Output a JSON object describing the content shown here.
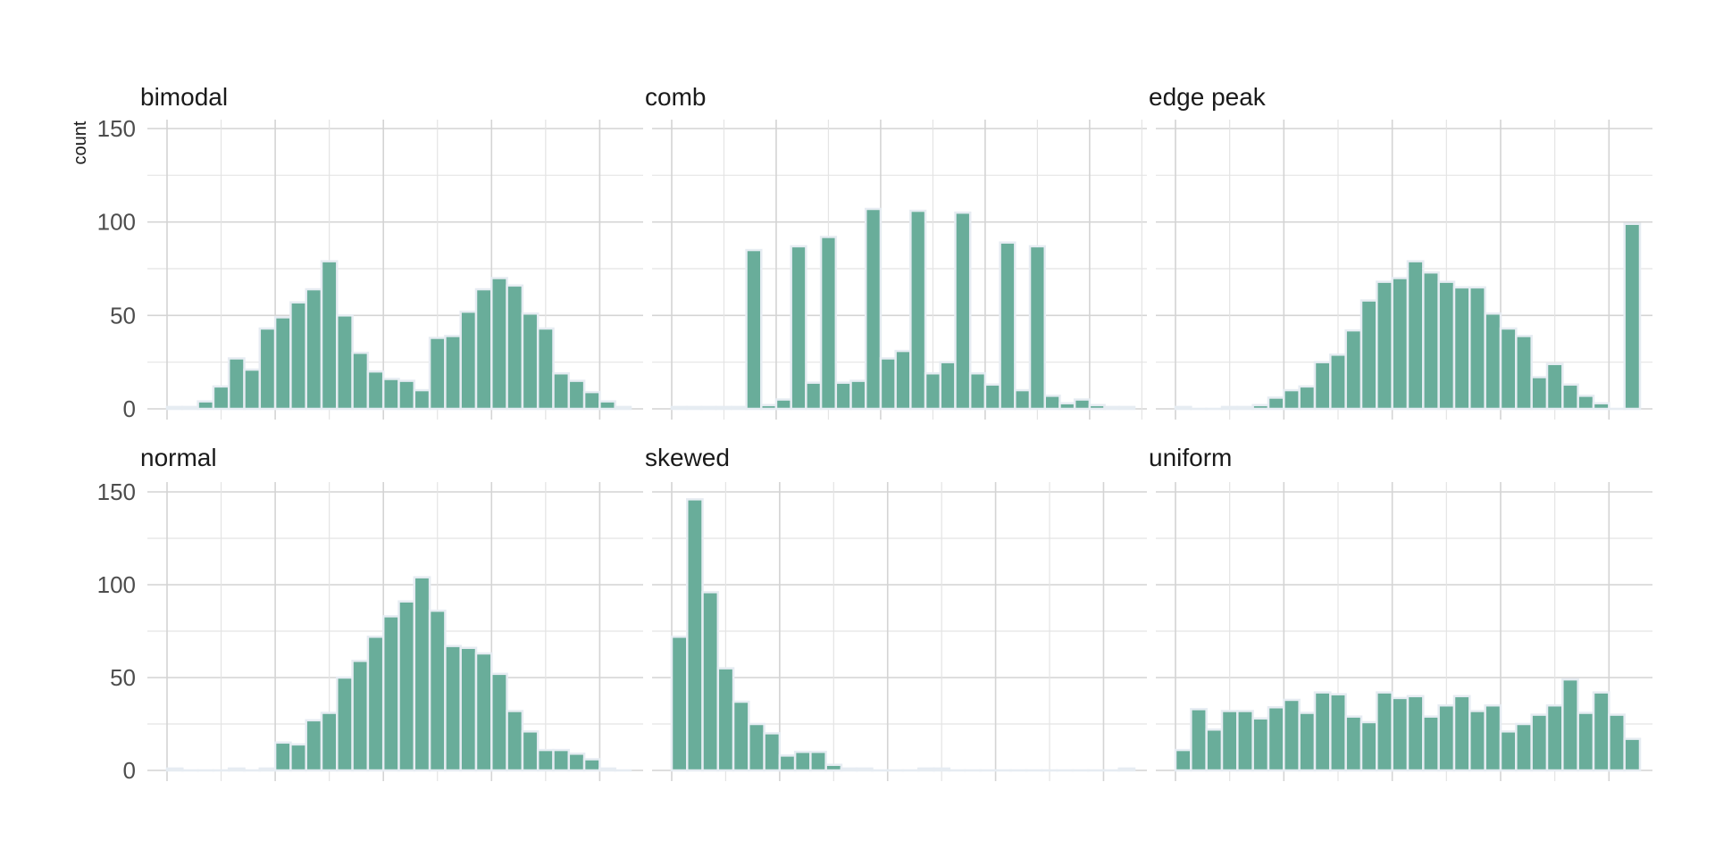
{
  "chart_data": {
    "type": "bar",
    "ylabel": "count",
    "ylim": [
      0,
      150
    ],
    "y_ticks": [
      0,
      50,
      100,
      150
    ],
    "facet_layout": "2 rows x 3 columns, shared y axis",
    "grid": true,
    "colors": {
      "bar_fill": "#69ad9a",
      "bar_outline": "#e6ecf2"
    },
    "panels": [
      {
        "name": "bimodal",
        "values": [
          1,
          1,
          4,
          12,
          27,
          21,
          43,
          49,
          57,
          64,
          79,
          50,
          30,
          20,
          16,
          15,
          10,
          38,
          39,
          52,
          64,
          70,
          66,
          51,
          43,
          19,
          15,
          9,
          4,
          1
        ]
      },
      {
        "name": "comb",
        "values": [
          1,
          1,
          1,
          1,
          1,
          85,
          2,
          5,
          87,
          14,
          92,
          14,
          15,
          107,
          27,
          31,
          106,
          19,
          25,
          105,
          19,
          13,
          89,
          10,
          87,
          7,
          3,
          5,
          2,
          1,
          1
        ]
      },
      {
        "name": "edge peak",
        "values": [
          1,
          0,
          0,
          1,
          1,
          2,
          6,
          10,
          12,
          25,
          29,
          42,
          58,
          68,
          70,
          79,
          73,
          68,
          65,
          65,
          51,
          43,
          39,
          17,
          24,
          13,
          7,
          3,
          0,
          99
        ]
      },
      {
        "name": "normal",
        "values": [
          1,
          0,
          0,
          0,
          1,
          0,
          1,
          15,
          14,
          27,
          31,
          50,
          59,
          72,
          83,
          91,
          104,
          86,
          67,
          66,
          63,
          52,
          32,
          21,
          11,
          11,
          9,
          6,
          1,
          0
        ]
      },
      {
        "name": "skewed",
        "values": [
          72,
          146,
          96,
          55,
          37,
          25,
          20,
          8,
          10,
          10,
          3,
          1,
          1,
          0,
          0,
          0,
          1,
          1,
          0,
          0,
          0,
          0,
          0,
          0,
          0,
          0,
          0,
          0,
          0,
          1
        ]
      },
      {
        "name": "uniform",
        "values": [
          11,
          33,
          22,
          32,
          32,
          28,
          34,
          38,
          31,
          42,
          41,
          29,
          26,
          42,
          39,
          40,
          29,
          35,
          40,
          32,
          35,
          21,
          25,
          30,
          35,
          49,
          31,
          42,
          30,
          17
        ]
      }
    ]
  }
}
